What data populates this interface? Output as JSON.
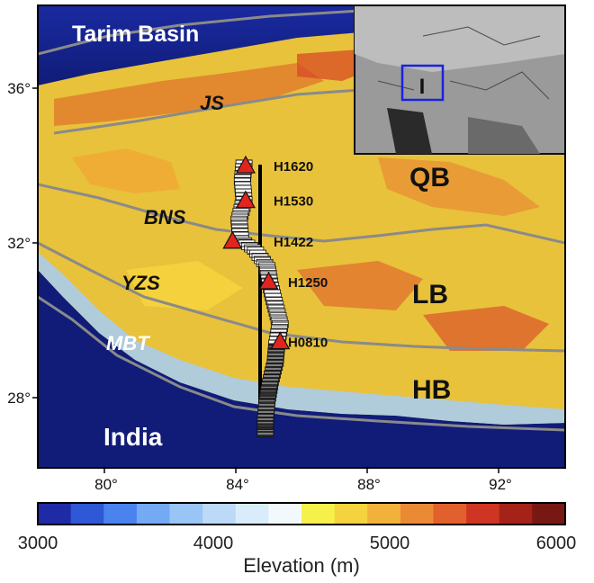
{
  "map": {
    "lon_ticks": [
      "80°",
      "84°",
      "88°",
      "92°"
    ],
    "lat_ticks": [
      "36°",
      "32°",
      "28°"
    ],
    "regions": {
      "tarim": "Tarim Basin",
      "india": "India",
      "qb": "QB",
      "lb": "LB",
      "hb": "HB"
    },
    "faults": {
      "js": "JS",
      "bns": "BNS",
      "yzs": "YZS",
      "mbt": "MBT"
    },
    "stations": [
      {
        "name": "H1620",
        "lon": 84.3,
        "lat": 34.0
      },
      {
        "name": "H1530",
        "lon": 84.3,
        "lat": 33.1
      },
      {
        "name": "H1422",
        "lon": 83.9,
        "lat": 32.05
      },
      {
        "name": "H1250",
        "lon": 85.0,
        "lat": 31.0
      },
      {
        "name": "H0810",
        "lon": 85.35,
        "lat": 29.45
      }
    ],
    "inset_label": "I"
  },
  "colorbar": {
    "min": 3000,
    "max": 6000,
    "tick_labels": [
      "3000",
      "4000",
      "5000",
      "6000"
    ],
    "label": "Elevation (m)",
    "colors": [
      "#1e2aa6",
      "#2f58d6",
      "#4a82ee",
      "#74a9f4",
      "#99c4f6",
      "#bcd9f8",
      "#d8ecfa",
      "#f2f9fd",
      "#f6f04a",
      "#f5d33e",
      "#f0b23a",
      "#eb8a35",
      "#e2602d",
      "#cf3523",
      "#a52219",
      "#781812"
    ]
  }
}
